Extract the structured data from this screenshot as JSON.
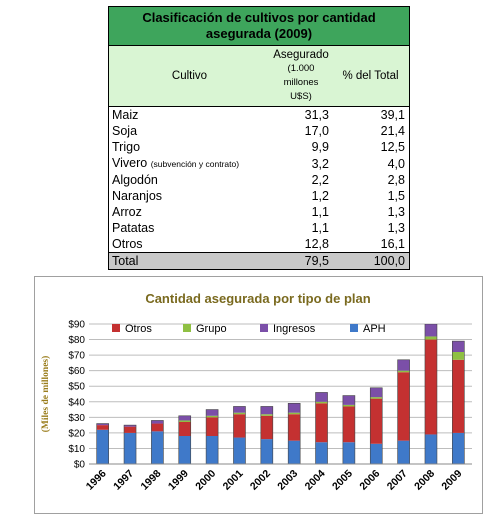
{
  "table": {
    "title_line1": "Clasificación de cultivos por cantidad",
    "title_line2": "asegurada (2009)",
    "header": {
      "cultivo": "Cultivo",
      "asegurado_line1": "Asegurado",
      "asegurado_line2": "(1.000",
      "asegurado_line3": "millones U$S)",
      "pct": "% del Total"
    },
    "rows": [
      {
        "name": "Maiz",
        "note": "",
        "amount": "31,3",
        "pct": "39,1"
      },
      {
        "name": "Soja",
        "note": "",
        "amount": "17,0",
        "pct": "21,4"
      },
      {
        "name": "Trigo",
        "note": "",
        "amount": "9,9",
        "pct": "12,5"
      },
      {
        "name": "Vivero",
        "note": "(subvención y contrato)",
        "amount": "3,2",
        "pct": "4,0"
      },
      {
        "name": "Algodón",
        "note": "",
        "amount": "2,2",
        "pct": "2,8"
      },
      {
        "name": "Naranjos",
        "note": "",
        "amount": "1,2",
        "pct": "1,5"
      },
      {
        "name": "Arroz",
        "note": "",
        "amount": "1,1",
        "pct": "1,3"
      },
      {
        "name": "Patatas",
        "note": "",
        "amount": "1,1",
        "pct": "1,3"
      },
      {
        "name": "Otros",
        "note": "",
        "amount": "12,8",
        "pct": "16,1"
      }
    ],
    "total": {
      "name": "Total",
      "amount": "79,5",
      "pct": "100,0"
    }
  },
  "chart_data": {
    "type": "bar",
    "stacked": true,
    "title": "Cantidad asegurada por tipo de plan",
    "ylabel": "(Miles de millones)",
    "xlabel": "",
    "ylim": [
      0,
      90
    ],
    "yticks": [
      0,
      10,
      20,
      30,
      40,
      50,
      60,
      70,
      80,
      90
    ],
    "ytick_labels": [
      "$0",
      "$10",
      "$20",
      "$30",
      "$40",
      "$50",
      "$60",
      "$70",
      "$80",
      "$90"
    ],
    "categories": [
      "1996",
      "1997",
      "1998",
      "1999",
      "2000",
      "2001",
      "2002",
      "2003",
      "2004",
      "2005",
      "2006",
      "2007",
      "2008",
      "2009"
    ],
    "legend_order": [
      "Otros",
      "Grupo",
      "Ingresos",
      "APH"
    ],
    "legend_position": "top",
    "grid": true,
    "series": [
      {
        "name": "APH",
        "color": "#3f79c9",
        "values": [
          22,
          20,
          21,
          18,
          18,
          17,
          16,
          15,
          14,
          14,
          13,
          15,
          19,
          20
        ]
      },
      {
        "name": "Otros",
        "color": "#c43131",
        "values": [
          3,
          4,
          5,
          9,
          12,
          15,
          15,
          17,
          25,
          23,
          29,
          44,
          61,
          47
        ]
      },
      {
        "name": "Grupo",
        "color": "#8fc043",
        "values": [
          0,
          0,
          0,
          1,
          1,
          1,
          1,
          1,
          1,
          1,
          1,
          1,
          2,
          5
        ]
      },
      {
        "name": "Ingresos",
        "color": "#7b4fa8",
        "values": [
          1,
          1,
          2,
          3,
          4,
          4,
          5,
          6,
          6,
          6,
          6,
          7,
          8,
          7
        ]
      }
    ]
  }
}
